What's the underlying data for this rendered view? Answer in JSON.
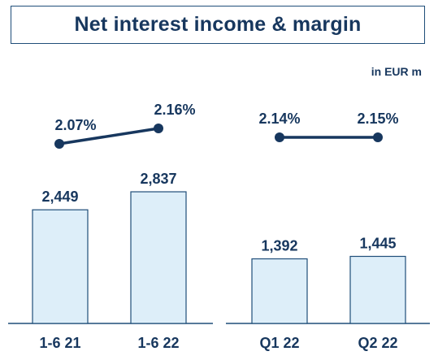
{
  "title": "Net interest income & margin",
  "unit_label": "in EUR m",
  "chart_data": [
    {
      "type": "bar",
      "categories": [
        "1-6 21",
        "1-6 22"
      ],
      "series": [
        {
          "values": [
            2449,
            2837
          ],
          "value_labels": [
            "2,449",
            "2,837"
          ]
        }
      ],
      "line_series": {
        "values": [
          2.07,
          2.16
        ],
        "labels": [
          "2.07%",
          "2.16%"
        ]
      }
    },
    {
      "type": "bar",
      "categories": [
        "Q1 22",
        "Q2 22"
      ],
      "series": [
        {
          "values": [
            1392,
            1445
          ],
          "value_labels": [
            "1,392",
            "1,445"
          ]
        }
      ],
      "line_series": {
        "values": [
          2.14,
          2.15
        ],
        "labels": [
          "2.14%",
          "2.15%"
        ]
      }
    }
  ],
  "colors": {
    "bar_fill": "#ddeef9",
    "bar_stroke": "#1f4e79",
    "text": "#17375e",
    "line": "#17375e"
  }
}
